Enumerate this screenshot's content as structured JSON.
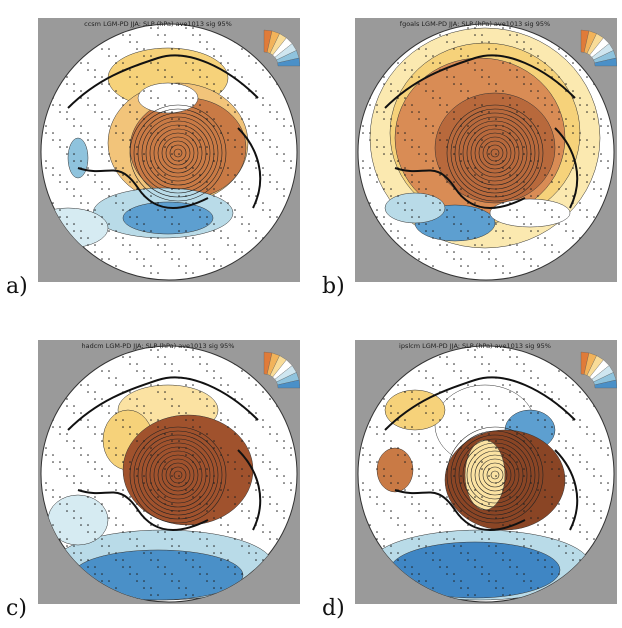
{
  "panels": [
    {
      "title": "ccsm LGM-PD JJA: SLP (hPa) ave1013 sig 95%",
      "label": "a)"
    },
    {
      "title": "fgoals LGM-PD JJA: SLP (hPa) ave1013 sig 95%",
      "label": "b)"
    },
    {
      "title": "hadcm LGM-PD JJA: SLP (hPa) ave1013 sig 95%",
      "label": "c)"
    },
    {
      "title": "ipslcm LGM-PD JJA: SLP (hPa) ave1013 sig 95%",
      "label": "d)"
    }
  ]
}
